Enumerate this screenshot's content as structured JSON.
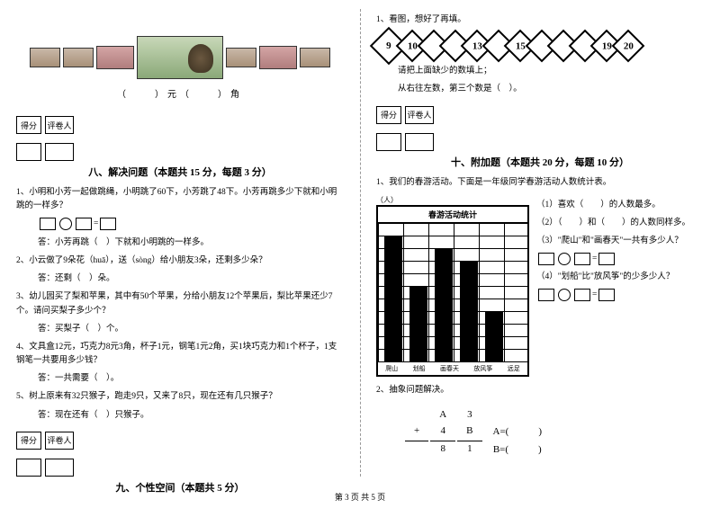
{
  "left": {
    "money_caption": "（　　）元（　　）角",
    "score_labels": {
      "a": "得分",
      "b": "评卷人"
    },
    "section8": {
      "title": "八、解决问题（本题共 15 分，每题 3 分）",
      "q1": "1、小明和小芳一起做跳绳，小明跳了60下，小芳跳了48下。小芳再跳多少下就和小明跳的一样多？",
      "q1_ans": "答：小芳再跳（　）下就和小明跳的一样多。",
      "q2": "2、小云做了9朵花（huā），送（sòng）给小朋友3朵，还剩多少朵？",
      "q2_ans": "答：还剩（　）朵。",
      "q3": "3、幼儿园买了梨和苹果，其中有50个苹果，分给小朋友12个苹果后，梨比苹果还少7个。请问买梨子多少个？",
      "q3_ans": "答：买梨子（　）个。",
      "q4": "4、文具盒12元，巧克力8元3角，杯子1元，钢笔1元2角，买1块巧克力和1个杯子，1支钢笔一共要用多少钱？",
      "q4_ans": "答：一共需要（　）。",
      "q5": "5、树上原来有32只猴子，跑走9只，又来了8只，现在还有几只猴子？",
      "q5_ans": "答：现在还有（　）只猴子。"
    },
    "section9": {
      "title": "九、个性空间（本题共 5 分）"
    }
  },
  "right": {
    "q1_intro": "1、看图，想好了再填。",
    "diamonds": [
      "9",
      "10",
      "",
      "",
      "13",
      "",
      "15",
      "",
      "",
      "",
      "19",
      "20"
    ],
    "q1_line1": "请把上面缺少的数填上；",
    "q1_line2": "从右往左数，第三个数是（　）。",
    "section10": {
      "title": "十、附加题（本题共 20 分，每题 10 分）",
      "q1": "1、我们的春游活动。下面是一年级同学春游活动人数统计表。",
      "chart": {
        "title": "春游活动统计",
        "tag": "（人）",
        "categories": [
          "爬山",
          "划船",
          "画春天",
          "放风筝",
          "远足"
        ],
        "values": [
          10,
          6,
          9,
          8,
          4
        ],
        "max": 11
      },
      "s1": "（1）喜欢（　　）的人数最多。",
      "s2": "（2）（　　）和（　　）的人数同样多。",
      "s3": "（3）\"爬山\"和\"画春天\"一共有多少人？",
      "s4": "（4）\"划船\"比\"放风筝\"的少多少人？",
      "q2": "2、抽象问题解决。",
      "calc_a3": "A",
      "calc_3": "3",
      "calc_plus": "+",
      "calc_4": "4",
      "calc_b": "B",
      "calc_8": "8",
      "calc_1": "1",
      "calc_ra": "A=(　　　)",
      "calc_rb": "B=(　　　)"
    }
  },
  "footer": "第 3 页 共 5 页"
}
